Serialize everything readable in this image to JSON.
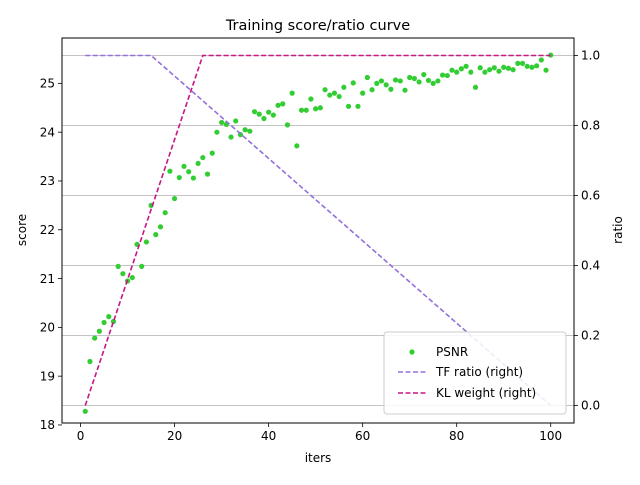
{
  "chart_data": {
    "type": "line",
    "title": "Training score/ratio curve",
    "xlabel": "iters",
    "ylabel_left": "score",
    "ylabel_right": "ratio",
    "xlim": [
      -3.95,
      104.95
    ],
    "ylim_left": [
      18.04,
      25.93
    ],
    "ylim_right": [
      -0.05,
      1.05
    ],
    "xticks": [
      0,
      20,
      40,
      60,
      80,
      100
    ],
    "yticks_left": [
      18,
      19,
      20,
      21,
      22,
      23,
      24,
      25
    ],
    "yticks_right": [
      0.0,
      0.2,
      0.4,
      0.6,
      0.8,
      1.0
    ],
    "ytick_labels_right": [
      "0.0",
      "0.2",
      "0.4",
      "0.6",
      "0.8",
      "1.0"
    ],
    "grid": "horizontal lines at right-axis ticks",
    "legend_position": "lower-right",
    "series": [
      {
        "name": "PSNR",
        "axis": "left",
        "style": "points",
        "color": "#32cd32",
        "x": [
          1,
          2,
          3,
          4,
          5,
          6,
          7,
          8,
          9,
          10,
          11,
          12,
          13,
          14,
          15,
          16,
          17,
          18,
          19,
          20,
          21,
          22,
          23,
          24,
          25,
          26,
          27,
          28,
          29,
          30,
          31,
          32,
          33,
          34,
          35,
          36,
          37,
          38,
          39,
          40,
          41,
          42,
          43,
          44,
          45,
          46,
          47,
          48,
          49,
          50,
          51,
          52,
          53,
          54,
          55,
          56,
          57,
          58,
          59,
          60,
          61,
          62,
          63,
          64,
          65,
          66,
          67,
          68,
          69,
          70,
          71,
          72,
          73,
          74,
          75,
          76,
          77,
          78,
          79,
          80,
          81,
          82,
          83,
          84,
          85,
          86,
          87,
          88,
          89,
          90,
          91,
          92,
          93,
          94,
          95,
          96,
          97,
          98,
          99,
          100
        ],
        "y": [
          18.28,
          19.3,
          19.78,
          19.92,
          20.1,
          20.22,
          20.12,
          21.25,
          21.1,
          20.95,
          21.02,
          21.7,
          21.25,
          21.75,
          22.5,
          21.9,
          22.06,
          22.35,
          23.2,
          22.64,
          23.07,
          23.3,
          23.19,
          23.06,
          23.36,
          23.48,
          23.14,
          23.57,
          24.0,
          24.2,
          24.16,
          23.9,
          24.23,
          23.95,
          24.05,
          24.02,
          24.42,
          24.37,
          24.28,
          24.41,
          24.35,
          24.55,
          24.58,
          24.15,
          24.8,
          23.72,
          24.45,
          24.45,
          24.68,
          24.48,
          24.5,
          24.87,
          24.76,
          24.8,
          24.73,
          24.92,
          24.53,
          25.01,
          24.53,
          24.8,
          25.12,
          24.87,
          25.0,
          25.05,
          24.97,
          24.88,
          25.07,
          25.05,
          24.86,
          25.12,
          25.1,
          25.03,
          25.18,
          25.06,
          25.0,
          25.05,
          25.17,
          25.16,
          25.27,
          25.23,
          25.3,
          25.35,
          25.23,
          24.92,
          25.32,
          25.23,
          25.28,
          25.32,
          25.25,
          25.33,
          25.31,
          25.28,
          25.41,
          25.41,
          25.35,
          25.33,
          25.36,
          25.48,
          25.27,
          25.58
        ]
      },
      {
        "name": "TF ratio (right)",
        "axis": "right",
        "style": "dashed",
        "color": "#9370db",
        "x": [
          1,
          15,
          100
        ],
        "y": [
          1.0,
          1.0,
          0.0
        ]
      },
      {
        "name": "KL weight (right)",
        "axis": "right",
        "style": "dashed",
        "color": "#c71585",
        "x": [
          1,
          26,
          100
        ],
        "y": [
          0.0,
          1.0,
          1.0
        ]
      }
    ]
  }
}
